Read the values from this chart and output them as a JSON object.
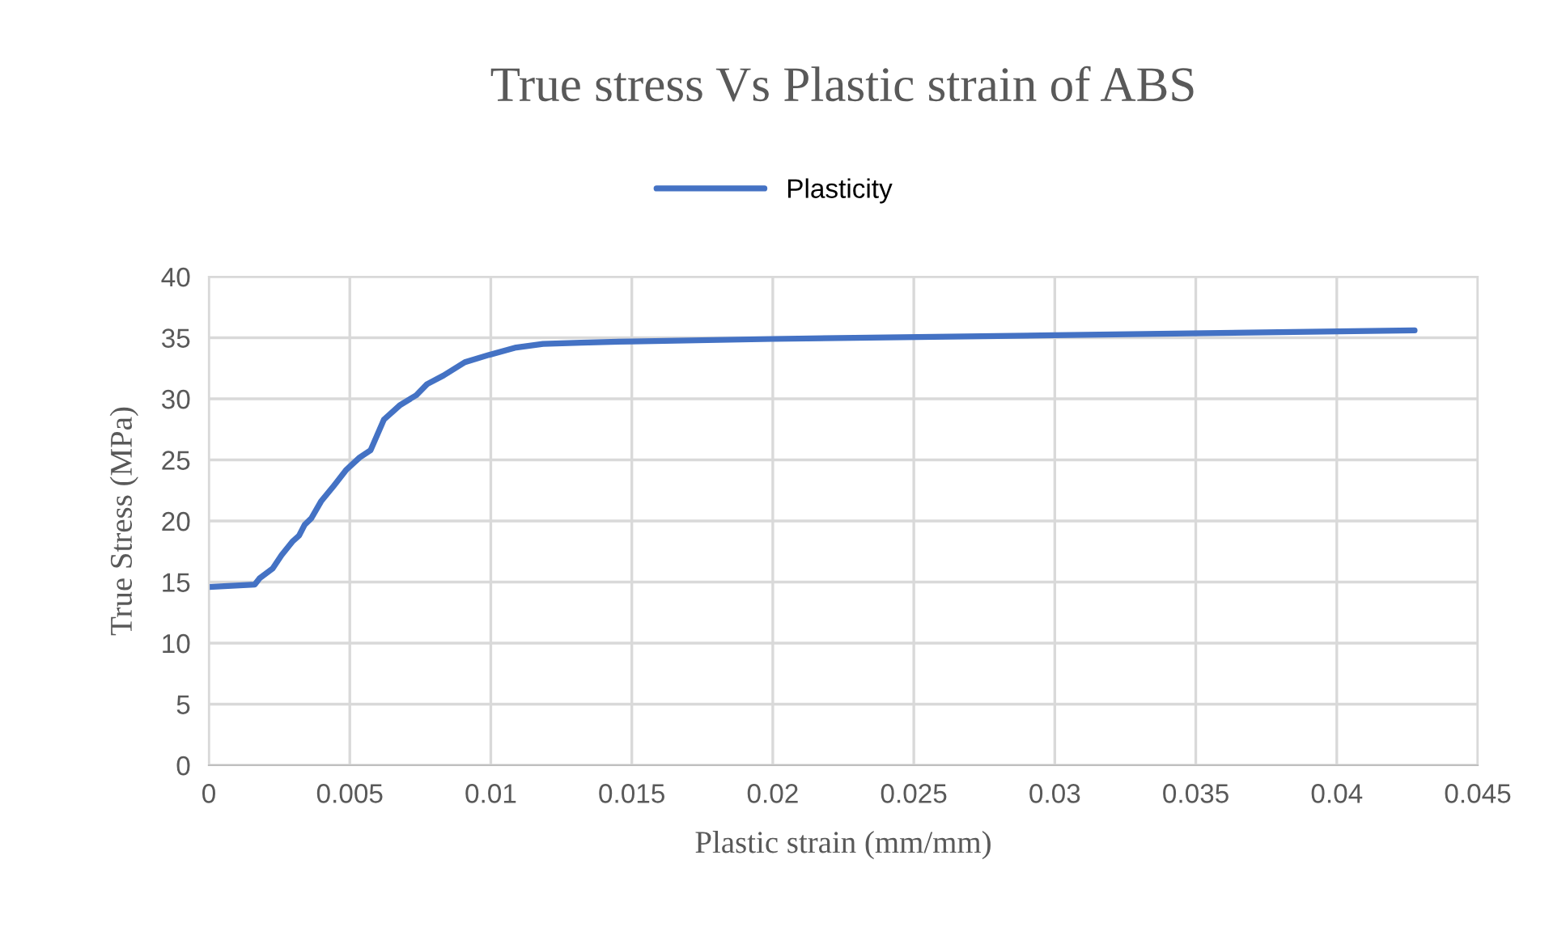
{
  "chart_data": {
    "type": "line",
    "title": "True stress Vs Plastic strain of ABS",
    "xlabel": "Plastic strain (mm/mm)",
    "ylabel": "True Stress (MPa)",
    "series": [
      {
        "name": "Plasticity",
        "color": "#4472c4",
        "x": [
          0,
          0.00163,
          0.0018,
          0.00226,
          0.00258,
          0.00296,
          0.0032,
          0.0034,
          0.00363,
          0.00398,
          0.00444,
          0.00488,
          0.00535,
          0.00574,
          0.00621,
          0.00679,
          0.00736,
          0.00774,
          0.00832,
          0.00908,
          0.00994,
          0.0109,
          0.01185,
          0.0132,
          0.015,
          0.02,
          0.03,
          0.04276
        ],
        "values": [
          14.6,
          14.8,
          15.3,
          16.1,
          17.2,
          18.3,
          18.8,
          19.7,
          20.2,
          21.6,
          22.9,
          24.2,
          25.2,
          25.8,
          28.3,
          29.5,
          30.3,
          31.2,
          31.9,
          33.0,
          33.6,
          34.2,
          34.5,
          34.6,
          34.7,
          34.9,
          35.2,
          35.6
        ]
      }
    ],
    "xlim": [
      0,
      0.045
    ],
    "xticks": [
      0,
      0.005,
      0.01,
      0.015,
      0.02,
      0.025,
      0.03,
      0.035,
      0.04,
      0.045
    ],
    "ylim": [
      0,
      40
    ],
    "yticks": [
      0,
      5,
      10,
      15,
      20,
      25,
      30,
      35,
      40
    ],
    "grid": true,
    "legend": "top",
    "marker": "none",
    "line_style": "solid"
  }
}
